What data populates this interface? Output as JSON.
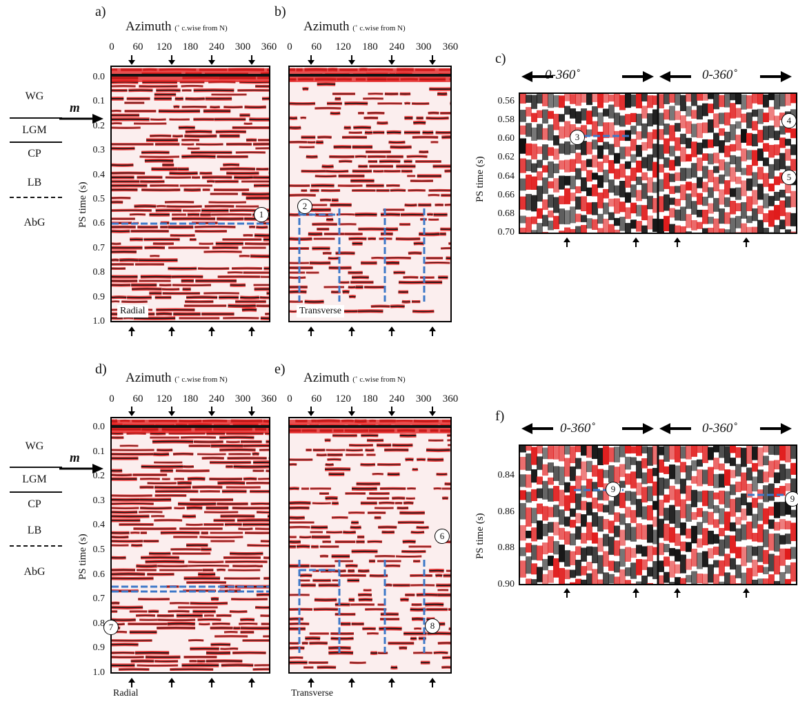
{
  "figure": {
    "panels": {
      "a": {
        "letter": "a)",
        "name": "Radial"
      },
      "b": {
        "letter": "b)",
        "name": "Transverse"
      },
      "c": {
        "letter": "c)",
        "range": "0-360˚"
      },
      "d": {
        "letter": "d)",
        "name": "Radial"
      },
      "e": {
        "letter": "e)",
        "name": "Transverse"
      },
      "f": {
        "letter": "f)",
        "range": "0-360˚"
      }
    },
    "azimuth_title": "Azimuth",
    "azimuth_sub": "(˚ c.wise from N)",
    "azimuth_ticks": [
      "0",
      "60",
      "120",
      "180",
      "240",
      "300",
      "360"
    ],
    "ps_time_label": "PS time (s)",
    "ps_time_ticks_main": [
      "0.0",
      "0.1",
      "0.2",
      "0.3",
      "0.4",
      "0.5",
      "0.6",
      "0.7",
      "0.8",
      "0.9",
      "1.0"
    ],
    "ps_time_ticks_c": [
      "0.56",
      "0.58",
      "0.60",
      "0.62",
      "0.64",
      "0.66",
      "0.68",
      "0.70"
    ],
    "ps_time_ticks_f": [
      "0.84",
      "0.86",
      "0.88",
      "0.90"
    ],
    "strat_units": [
      "WG",
      "LGM",
      "CP",
      "LB",
      "AbG"
    ],
    "marker_m": "m",
    "markers": {
      "1": "1",
      "2": "2",
      "3": "3",
      "4": "4",
      "5": "5",
      "6": "6",
      "7": "7",
      "8": "8",
      "9": "9"
    },
    "colors": {
      "red": "#e01b1b",
      "black": "#111111",
      "marker_line": "#3d78c8"
    }
  }
}
